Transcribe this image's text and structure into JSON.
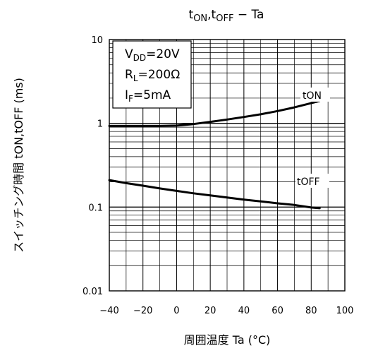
{
  "chart_data": {
    "type": "line",
    "title": {
      "main": "t",
      "sub1": "ON",
      "sep": ",t",
      "sub2": "OFF",
      "tail": " − Ta"
    },
    "xlabel": "周囲温度  Ta (°C)",
    "ylabel": "スイッチング時間  tON,tOFF (ms)",
    "xlim": [
      -40,
      100
    ],
    "ylim": [
      0.01,
      10
    ],
    "y_scale": "log",
    "grid": true,
    "x_ticks": [
      "−40",
      "−20",
      "0",
      "20",
      "40",
      "60",
      "80",
      "100"
    ],
    "y_ticks": [
      {
        "label": "10",
        "value": 10
      },
      {
        "label": "1",
        "value": 1
      },
      {
        "label": "0.1",
        "value": 0.1
      },
      {
        "label": "0.01",
        "value": 0.01
      }
    ],
    "conditions": [
      {
        "main": "V",
        "sub": "DD",
        "tail": "=20V"
      },
      {
        "main": "R",
        "sub": "L",
        "tail": "=200Ω"
      },
      {
        "main": "I",
        "sub": "F",
        "tail": "=5mA"
      }
    ],
    "series": [
      {
        "name": "tON",
        "x": [
          -40,
          -30,
          -20,
          -10,
          0,
          10,
          20,
          30,
          40,
          50,
          60,
          70,
          80,
          85
        ],
        "y": [
          0.93,
          0.93,
          0.93,
          0.93,
          0.94,
          0.98,
          1.04,
          1.11,
          1.19,
          1.28,
          1.4,
          1.55,
          1.74,
          1.85
        ]
      },
      {
        "name": "tOFF",
        "x": [
          -40,
          -30,
          -20,
          -10,
          0,
          10,
          20,
          30,
          40,
          50,
          60,
          70,
          80,
          85
        ],
        "y": [
          0.21,
          0.193,
          0.18,
          0.167,
          0.156,
          0.146,
          0.138,
          0.13,
          0.123,
          0.117,
          0.111,
          0.106,
          0.099,
          0.097
        ]
      }
    ]
  }
}
